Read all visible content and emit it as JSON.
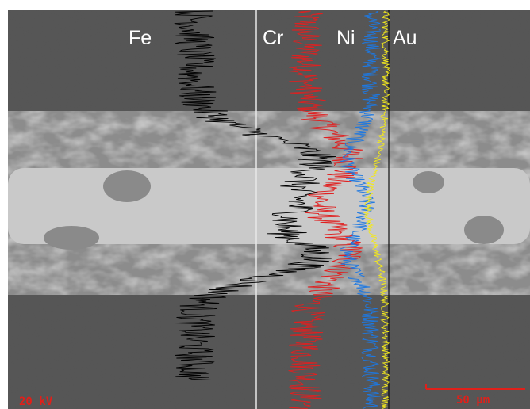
{
  "labels": {
    "elements": [
      "Fe",
      "Cr",
      "Ni",
      "Au"
    ]
  },
  "scale_bar": {
    "voltage": "20 kV",
    "length": "50 µm"
  }
}
